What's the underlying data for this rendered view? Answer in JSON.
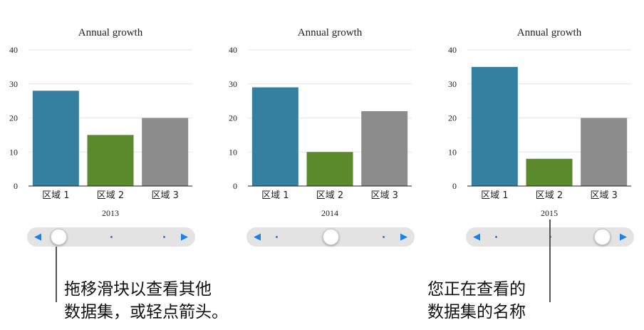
{
  "chart_data": [
    {
      "type": "bar",
      "title": "Annual growth",
      "categories": [
        "区域 1",
        "区域 2",
        "区域 3"
      ],
      "values": [
        28,
        15,
        20
      ],
      "ylim": [
        0,
        40
      ],
      "yticks": [
        "0",
        "10",
        "20",
        "30",
        "40"
      ],
      "dataset_name": "2013",
      "slider_position": 0,
      "grid": true
    },
    {
      "type": "bar",
      "title": "Annual growth",
      "categories": [
        "区域 1",
        "区域 2",
        "区域 3"
      ],
      "values": [
        29,
        10,
        22
      ],
      "ylim": [
        0,
        40
      ],
      "yticks": [
        "0",
        "10",
        "20",
        "30",
        "40"
      ],
      "dataset_name": "2014",
      "slider_position": 0.5,
      "grid": true
    },
    {
      "type": "bar",
      "title": "Annual growth",
      "categories": [
        "区域 1",
        "区域 2",
        "区域 3"
      ],
      "values": [
        35,
        8,
        20
      ],
      "ylim": [
        0,
        40
      ],
      "yticks": [
        "0",
        "10",
        "20",
        "30",
        "40"
      ],
      "dataset_name": "2015",
      "slider_position": 1,
      "grid": true
    }
  ],
  "colors": {
    "bar_1": "#357fa1",
    "bar_2": "#5a8a2b",
    "bar_3": "#8c8c8c",
    "slider_accent": "#1a7ff0"
  },
  "slider": {
    "left_arrow": "◀",
    "right_arrow": "▶"
  },
  "callouts": {
    "left_line1": "拖移滑块以查看其他",
    "left_line2": "数据集，或轻点箭头。",
    "right_line1": "您正在查看的",
    "right_line2": "数据集的名称"
  }
}
